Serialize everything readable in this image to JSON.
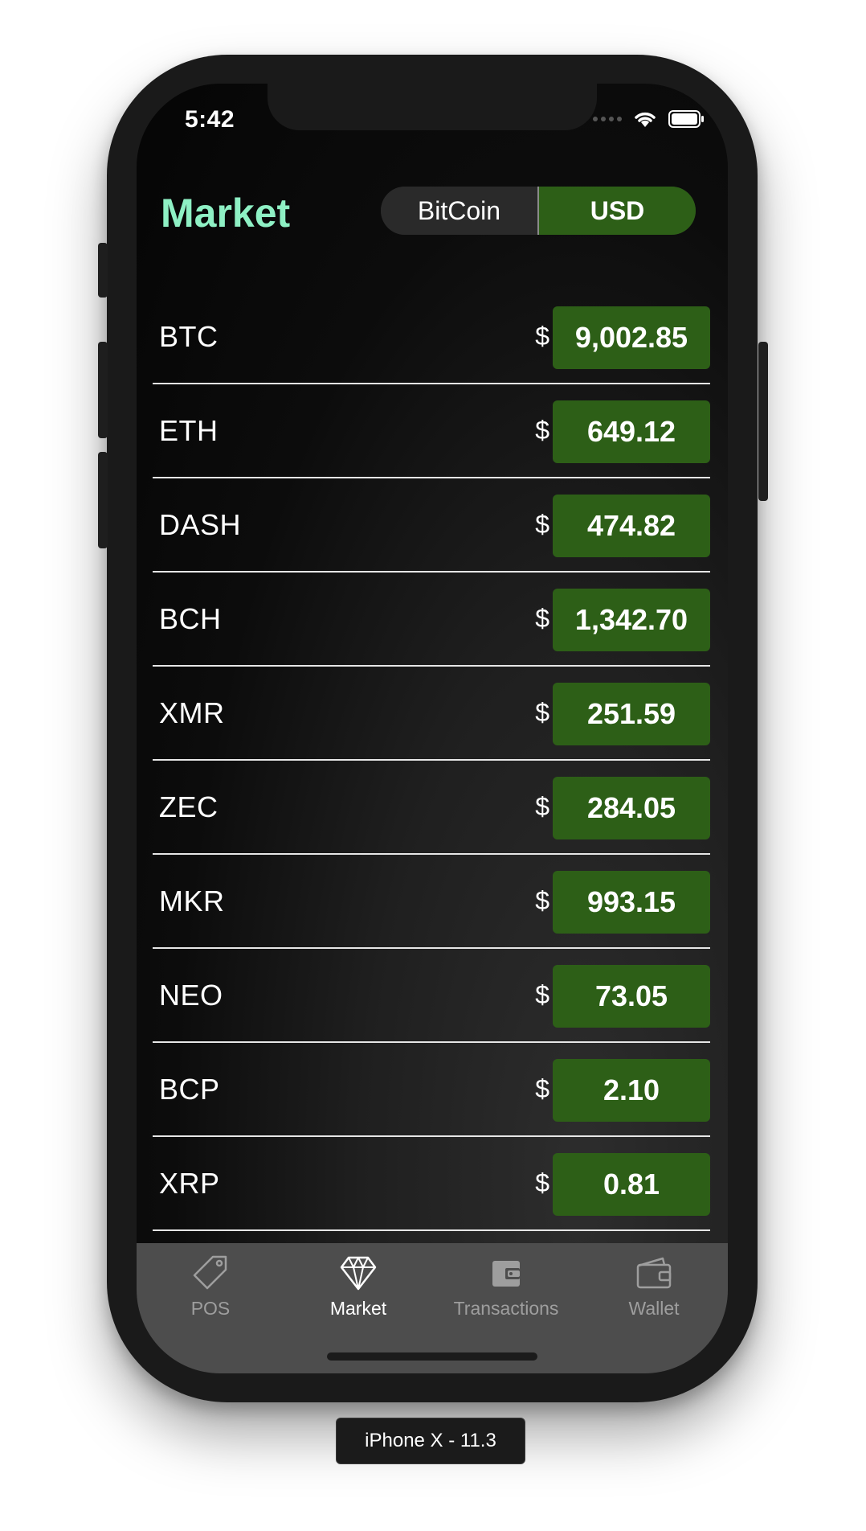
{
  "status_bar": {
    "time": "5:42",
    "icons": [
      "signal-icon",
      "wifi-icon",
      "battery-icon"
    ]
  },
  "header": {
    "title": "Market",
    "toggle": {
      "options": [
        "BitCoin",
        "USD"
      ],
      "selected": "USD"
    }
  },
  "market": {
    "currency_symbol": "$",
    "rows": [
      {
        "symbol": "BTC",
        "price": "9,002.85"
      },
      {
        "symbol": "ETH",
        "price": "649.12"
      },
      {
        "symbol": "DASH",
        "price": "474.82"
      },
      {
        "symbol": "BCH",
        "price": "1,342.70"
      },
      {
        "symbol": "XMR",
        "price": "251.59"
      },
      {
        "symbol": "ZEC",
        "price": "284.05"
      },
      {
        "symbol": "MKR",
        "price": "993.15"
      },
      {
        "symbol": "NEO",
        "price": "73.05"
      },
      {
        "symbol": "BCP",
        "price": "2.10"
      },
      {
        "symbol": "XRP",
        "price": "0.81"
      }
    ]
  },
  "tabbar": {
    "tabs": [
      {
        "label": "POS",
        "icon": "tag-icon"
      },
      {
        "label": "Market",
        "icon": "diamond-icon"
      },
      {
        "label": "Transactions",
        "icon": "wallet-filled-icon"
      },
      {
        "label": "Wallet",
        "icon": "wallet-outline-icon"
      }
    ],
    "active": "Market"
  },
  "device_label": "iPhone X - 11.3",
  "colors": {
    "accent_title": "#8ef0c4",
    "price_bg": "#2d5f17",
    "tabbar_bg": "#4d4d4d"
  }
}
